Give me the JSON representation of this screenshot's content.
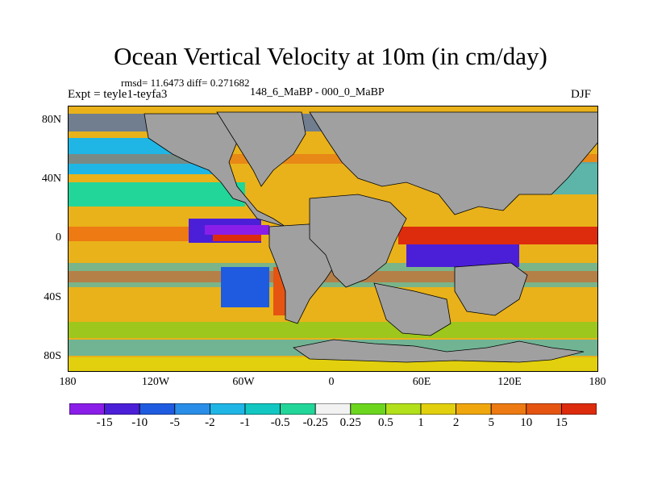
{
  "title": "Ocean Vertical Velocity at 10m (in cm/day)",
  "stats": "rmsd= 11.6473 diff= 0.271682",
  "experiment": "Expt = teyle1-teyfa3",
  "case": "148_6_MaBP - 000_0_MaBP",
  "season": "DJF",
  "y_labels": [
    "80N",
    "40N",
    "0",
    "40S",
    "80S"
  ],
  "x_labels": [
    "180",
    "120W",
    "60W",
    "0",
    "60E",
    "120E",
    "180"
  ],
  "colorbar": {
    "labels": [
      "-15",
      "-10",
      "-5",
      "-2",
      "-1",
      "-0.5",
      "-0.25",
      "0.25",
      "0.5",
      "1",
      "2",
      "5",
      "10",
      "15"
    ],
    "colors": [
      "#8a1ee8",
      "#4b1fd8",
      "#1f5be0",
      "#2a8ee8",
      "#1fb6e6",
      "#12c7c1",
      "#22d69a",
      "#f2f2f2",
      "#6cd61f",
      "#b2e01b",
      "#e2d00e",
      "#f0a70e",
      "#ed7a12",
      "#e65412",
      "#dd2b0e"
    ]
  },
  "land_color": "#a0a0a0"
}
